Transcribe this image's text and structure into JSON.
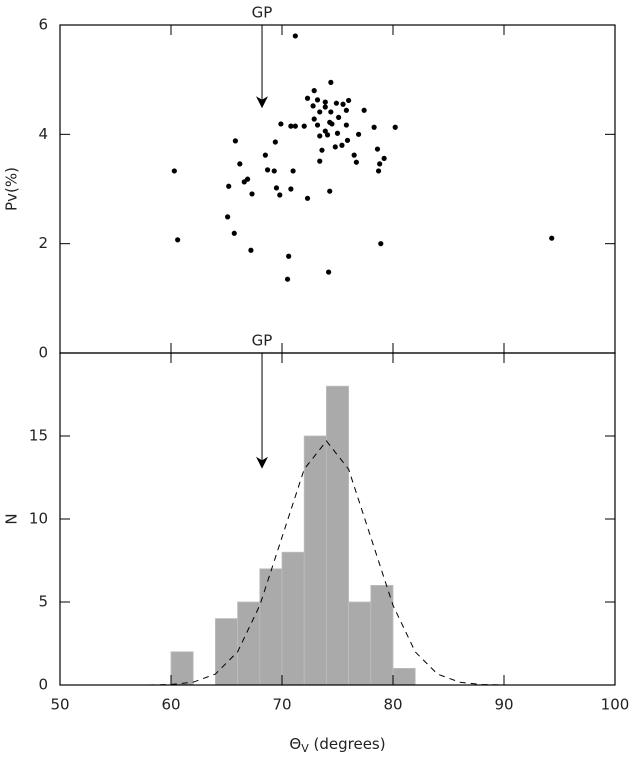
{
  "chart_data": [
    {
      "type": "scatter",
      "ylabel": "Pv(%)",
      "color": "#000000",
      "xlim": [
        50,
        100
      ],
      "ylim": [
        0,
        6
      ],
      "yticks": [
        0,
        2,
        4,
        6
      ],
      "annotation": {
        "text": "GP",
        "x": 68.2,
        "y": 4.5
      },
      "x": [
        60.3,
        60.6,
        71.2,
        65.8,
        66.2,
        65.2,
        66.6,
        66.9,
        67.3,
        65.1,
        65.7,
        67.2,
        70.6,
        70.5,
        74.2,
        78.9,
        94.3,
        68.5,
        68.7,
        69.3,
        69.5,
        69.8,
        70.8,
        71.0,
        69.4,
        69.9,
        70.8,
        71.2,
        72.0,
        72.3,
        73.4,
        73.6,
        74.3,
        72.9,
        73.2,
        73.4,
        73.9,
        74.1,
        74.3,
        74.5,
        74.4,
        73.9,
        73.4,
        72.8,
        73.2,
        73.9,
        74.4,
        72.9,
        72.3,
        74.9,
        75.5,
        76.0,
        75.8,
        75.1,
        75.0,
        74.8,
        75.4,
        75.9,
        75.8,
        76.5,
        76.9,
        76.7,
        77.4,
        78.3,
        78.6,
        78.8,
        79.2,
        78.7,
        80.2
      ],
      "values": [
        3.33,
        2.07,
        5.8,
        3.88,
        3.46,
        3.05,
        3.13,
        3.18,
        2.91,
        2.49,
        2.19,
        1.88,
        1.77,
        1.35,
        1.48,
        2.0,
        2.1,
        3.62,
        3.35,
        3.33,
        3.02,
        2.89,
        3.0,
        3.33,
        3.86,
        4.19,
        4.15,
        4.15,
        4.15,
        2.83,
        3.51,
        3.71,
        2.96,
        4.28,
        4.17,
        3.97,
        4.06,
        3.99,
        4.22,
        4.19,
        4.41,
        4.5,
        4.41,
        4.52,
        4.63,
        4.59,
        4.95,
        4.8,
        4.66,
        4.57,
        4.55,
        4.62,
        4.44,
        4.31,
        4.02,
        3.77,
        3.8,
        3.89,
        4.17,
        3.62,
        4.0,
        3.49,
        4.44,
        4.13,
        3.73,
        3.46,
        3.56,
        3.33,
        4.13
      ]
    },
    {
      "type": "histogram",
      "ylabel": "N",
      "xlabel": {
        "symbol": "Θ",
        "subscript": "V",
        "text": " (degrees)"
      },
      "color": "#aaaaaa",
      "xlim": [
        50,
        100
      ],
      "xticks": [
        50,
        60,
        70,
        80,
        90,
        100
      ],
      "ylim": [
        0,
        20
      ],
      "yticks": [
        0,
        5,
        10,
        15
      ],
      "annotation": {
        "text": "GP",
        "x": 68.2,
        "y": 13.1
      },
      "bins": [
        60,
        62,
        64,
        66,
        68,
        70,
        72,
        74,
        76,
        78,
        80,
        82
      ],
      "values": [
        2,
        0,
        4,
        5,
        7,
        8,
        15,
        18,
        5,
        6,
        1
      ],
      "curve": {
        "x": [
          58,
          60,
          62,
          64,
          66,
          68,
          70,
          72,
          74,
          76,
          78,
          80,
          82,
          84,
          86,
          88,
          90
        ],
        "values": [
          0,
          0.03,
          0.17,
          0.66,
          2.0,
          4.8,
          8.9,
          13.0,
          14.7,
          13.0,
          8.9,
          4.8,
          2.0,
          0.66,
          0.17,
          0.03,
          0
        ]
      }
    }
  ]
}
